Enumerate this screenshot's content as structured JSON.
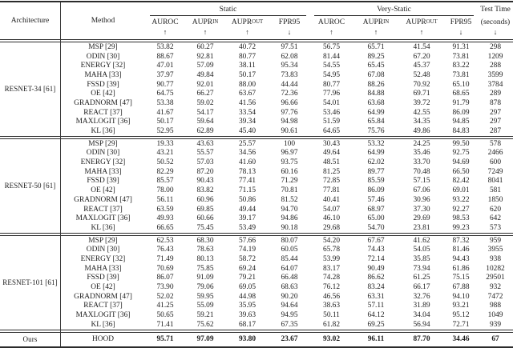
{
  "paper_table": {
    "header": {
      "architecture_label": "Architecture",
      "method_label": "Method",
      "groups": [
        {
          "label": "Static",
          "columns": [
            {
              "name": "AUROC",
              "sub": "",
              "arrow": "↑"
            },
            {
              "name": "AUPR",
              "sub": "IN",
              "arrow": "↑"
            },
            {
              "name": "AUPR",
              "sub": "OUT",
              "arrow": "↑"
            },
            {
              "name": "FPR95",
              "sub": "",
              "arrow": "↓"
            }
          ]
        },
        {
          "label": "Very-Static",
          "columns": [
            {
              "name": "AUROC",
              "sub": "",
              "arrow": "↑"
            },
            {
              "name": "AUPR",
              "sub": "IN",
              "arrow": "↑"
            },
            {
              "name": "AUPR",
              "sub": "OUT",
              "arrow": "↑"
            },
            {
              "name": "FPR95",
              "sub": "",
              "arrow": "↓"
            }
          ]
        }
      ],
      "test_time": {
        "line1": "Test Time",
        "line2": "(seconds)",
        "arrow": "↓"
      }
    },
    "blocks": [
      {
        "architecture": "RESNET-34 [61]",
        "rows": [
          {
            "method": "MSP [29]",
            "values": [
              "53.82",
              "60.27",
              "40.72",
              "97.51",
              "56.75",
              "65.71",
              "41.54",
              "91.31",
              "298"
            ]
          },
          {
            "method": "ODIN [30]",
            "values": [
              "88.67",
              "92.81",
              "80.77",
              "62.08",
              "81.44",
              "89.25",
              "67.20",
              "73.81",
              "1209"
            ]
          },
          {
            "method": "ENERGY [32]",
            "values": [
              "47.01",
              "57.09",
              "38.11",
              "95.34",
              "54.55",
              "65.45",
              "45.37",
              "83.22",
              "288"
            ]
          },
          {
            "method": "MAHA [33]",
            "values": [
              "37.97",
              "49.84",
              "50.17",
              "73.83",
              "54.95",
              "67.08",
              "52.48",
              "73.81",
              "3599"
            ]
          },
          {
            "method": "FSSD [39]",
            "values": [
              "90.77",
              "92.01",
              "88.00",
              "44.44",
              "80.77",
              "88.26",
              "70.92",
              "65.10",
              "3784"
            ]
          },
          {
            "method": "OE [42]",
            "values": [
              "64.75",
              "66.27",
              "63.67",
              "72.36",
              "77.96",
              "84.88",
              "69.71",
              "68.65",
              "289"
            ]
          },
          {
            "method": "GRADNORM [47]",
            "values": [
              "53.38",
              "59.02",
              "41.56",
              "96.66",
              "54.01",
              "63.68",
              "39.72",
              "91.79",
              "878"
            ]
          },
          {
            "method": "REACT [37]",
            "values": [
              "41.67",
              "54.17",
              "33.54",
              "97.76",
              "53.46",
              "64.99",
              "42.55",
              "86.09",
              "297"
            ]
          },
          {
            "method": "MAXLOGIT [36]",
            "values": [
              "50.17",
              "59.64",
              "39.34",
              "94.98",
              "51.59",
              "65.84",
              "34.35",
              "94.85",
              "297"
            ]
          },
          {
            "method": "KL [36]",
            "values": [
              "52.95",
              "62.89",
              "45.40",
              "90.61",
              "64.65",
              "75.76",
              "49.86",
              "84.83",
              "287"
            ]
          }
        ]
      },
      {
        "architecture": "RESNET-50 [61]",
        "rows": [
          {
            "method": "MSP [29]",
            "values": [
              "19.33",
              "43.63",
              "25.57",
              "100",
              "30.43",
              "53.32",
              "24.25",
              "99.50",
              "578"
            ]
          },
          {
            "method": "ODIN [30]",
            "values": [
              "43.21",
              "55.57",
              "34.56",
              "96.97",
              "49.64",
              "64.99",
              "35.46",
              "92.75",
              "2466"
            ]
          },
          {
            "method": "ENERGY [32]",
            "values": [
              "50.52",
              "57.03",
              "41.60",
              "93.75",
              "48.51",
              "62.02",
              "33.70",
              "94.69",
              "600"
            ]
          },
          {
            "method": "MAHA [33]",
            "values": [
              "82.29",
              "87.20",
              "78.13",
              "60.16",
              "81.25",
              "89.77",
              "70.48",
              "66.50",
              "7249"
            ]
          },
          {
            "method": "FSSD [39]",
            "values": [
              "85.57",
              "90.43",
              "77.41",
              "71.29",
              "72.85",
              "85.59",
              "57.15",
              "82.42",
              "8041"
            ]
          },
          {
            "method": "OE [42]",
            "values": [
              "78.00",
              "83.82",
              "71.15",
              "70.81",
              "77.81",
              "86.09",
              "67.06",
              "69.01",
              "581"
            ]
          },
          {
            "method": "GRADNORM [47]",
            "values": [
              "56.11",
              "60.96",
              "50.86",
              "81.52",
              "40.41",
              "57.46",
              "30.96",
              "93.22",
              "1850"
            ]
          },
          {
            "method": "REACT [37]",
            "values": [
              "63.59",
              "69.85",
              "49.44",
              "94.70",
              "54.07",
              "68.97",
              "37.30",
              "92.27",
              "620"
            ]
          },
          {
            "method": "MAXLOGIT [36]",
            "values": [
              "49.93",
              "60.66",
              "39.17",
              "94.86",
              "46.10",
              "65.00",
              "29.69",
              "98.53",
              "642"
            ]
          },
          {
            "method": "KL [36]",
            "values": [
              "66.65",
              "75.45",
              "53.49",
              "90.18",
              "29.68",
              "54.70",
              "23.81",
              "99.23",
              "573"
            ]
          }
        ]
      },
      {
        "architecture": "RESNET-101 [61]",
        "rows": [
          {
            "method": "MSP [29]",
            "values": [
              "62.53",
              "68.30",
              "57.66",
              "80.07",
              "54.20",
              "67.67",
              "41.62",
              "87.32",
              "959"
            ]
          },
          {
            "method": "ODIN [30]",
            "values": [
              "76.43",
              "78.63",
              "74.19",
              "60.05",
              "65.78",
              "74.43",
              "54.05",
              "81.46",
              "3955"
            ]
          },
          {
            "method": "ENERGY [32]",
            "values": [
              "71.49",
              "80.13",
              "58.72",
              "85.44",
              "53.99",
              "72.14",
              "35.85",
              "94.43",
              "938"
            ]
          },
          {
            "method": "MAHA [33]",
            "values": [
              "70.69",
              "75.85",
              "69.24",
              "64.07",
              "83.17",
              "90.49",
              "73.94",
              "61.86",
              "10282"
            ]
          },
          {
            "method": "FSSD [39]",
            "values": [
              "86.07",
              "91.09",
              "79.21",
              "66.48",
              "74.28",
              "86.62",
              "61.25",
              "75.15",
              "29501"
            ]
          },
          {
            "method": "OE [42]",
            "values": [
              "73.90",
              "79.06",
              "69.05",
              "68.63",
              "76.12",
              "83.24",
              "66.17",
              "67.88",
              "932"
            ]
          },
          {
            "method": "GRADNORM [47]",
            "values": [
              "52.02",
              "59.95",
              "44.98",
              "90.20",
              "46.56",
              "63.31",
              "32.76",
              "94.10",
              "7472"
            ]
          },
          {
            "method": "REACT [37]",
            "values": [
              "41.25",
              "55.09",
              "35.95",
              "94.64",
              "38.63",
              "57.11",
              "31.89",
              "93.21",
              "988"
            ]
          },
          {
            "method": "MAXLOGIT [36]",
            "values": [
              "50.65",
              "59.21",
              "39.63",
              "94.95",
              "50.11",
              "64.12",
              "34.04",
              "95.12",
              "1049"
            ]
          },
          {
            "method": "KL [36]",
            "values": [
              "71.41",
              "75.62",
              "68.17",
              "67.35",
              "61.82",
              "69.25",
              "56.94",
              "72.71",
              "939"
            ]
          }
        ]
      },
      {
        "architecture": "Ours",
        "ours": true,
        "rows": [
          {
            "method": "HOOD",
            "values": [
              "95.71",
              "97.09",
              "93.80",
              "23.67",
              "93.02",
              "96.11",
              "87.70",
              "34.46",
              "67"
            ]
          }
        ]
      }
    ]
  }
}
